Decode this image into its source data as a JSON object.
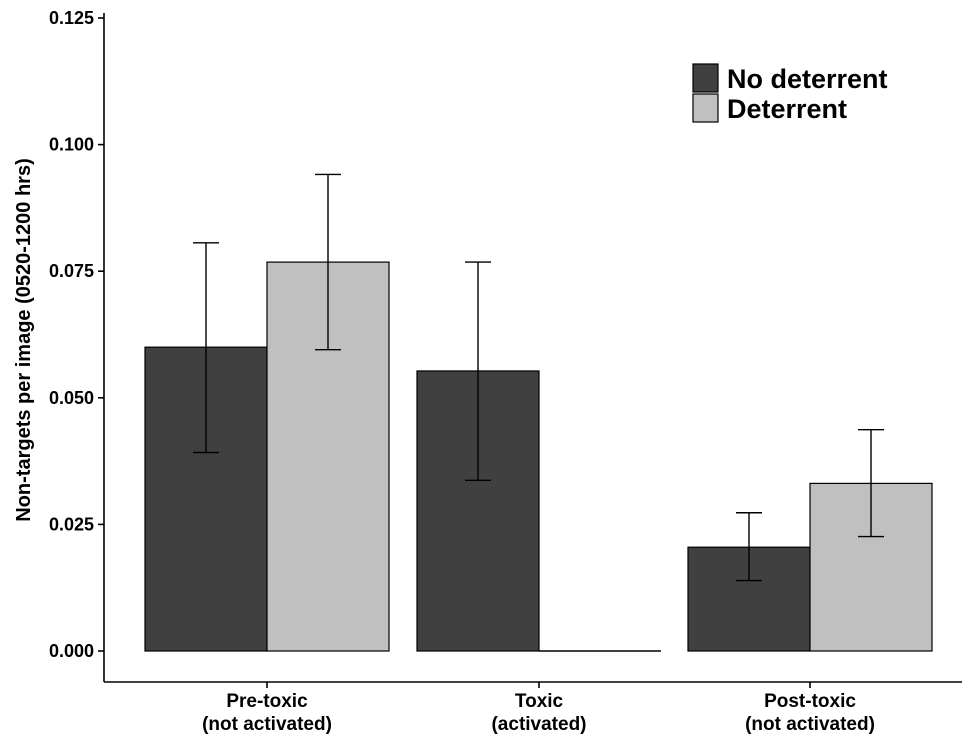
{
  "chart_data": {
    "type": "bar",
    "title": "",
    "xlabel": "",
    "ylabel": "Non-targets per image (0520-1200 hrs)",
    "ylim": [
      0,
      0.125
    ],
    "yticks": [
      "0.000",
      "0.025",
      "0.050",
      "0.075",
      "0.100",
      "0.125"
    ],
    "ytick_values": [
      0,
      0.025,
      0.05,
      0.075,
      0.1,
      0.125
    ],
    "categories": [
      {
        "line1": "Pre-toxic",
        "line2": "(not activated)"
      },
      {
        "line1": "Toxic",
        "line2": "(activated)"
      },
      {
        "line1": "Post-toxic",
        "line2": "(not activated)"
      }
    ],
    "series": [
      {
        "name": "No deterrent",
        "color": "#404040",
        "values": [
          0.06,
          0.0553,
          0.0205
        ],
        "err_low": [
          0.0392,
          0.0337,
          0.0139
        ],
        "err_high": [
          0.0806,
          0.0768,
          0.0273
        ]
      },
      {
        "name": "Deterrent",
        "color": "#c0c0c0",
        "values": [
          0.0768,
          0.0,
          0.0331
        ],
        "err_low": [
          0.0595,
          null,
          0.0226
        ],
        "err_high": [
          0.0941,
          null,
          0.0437
        ]
      }
    ],
    "legend_position": "top-right",
    "grid": false
  }
}
